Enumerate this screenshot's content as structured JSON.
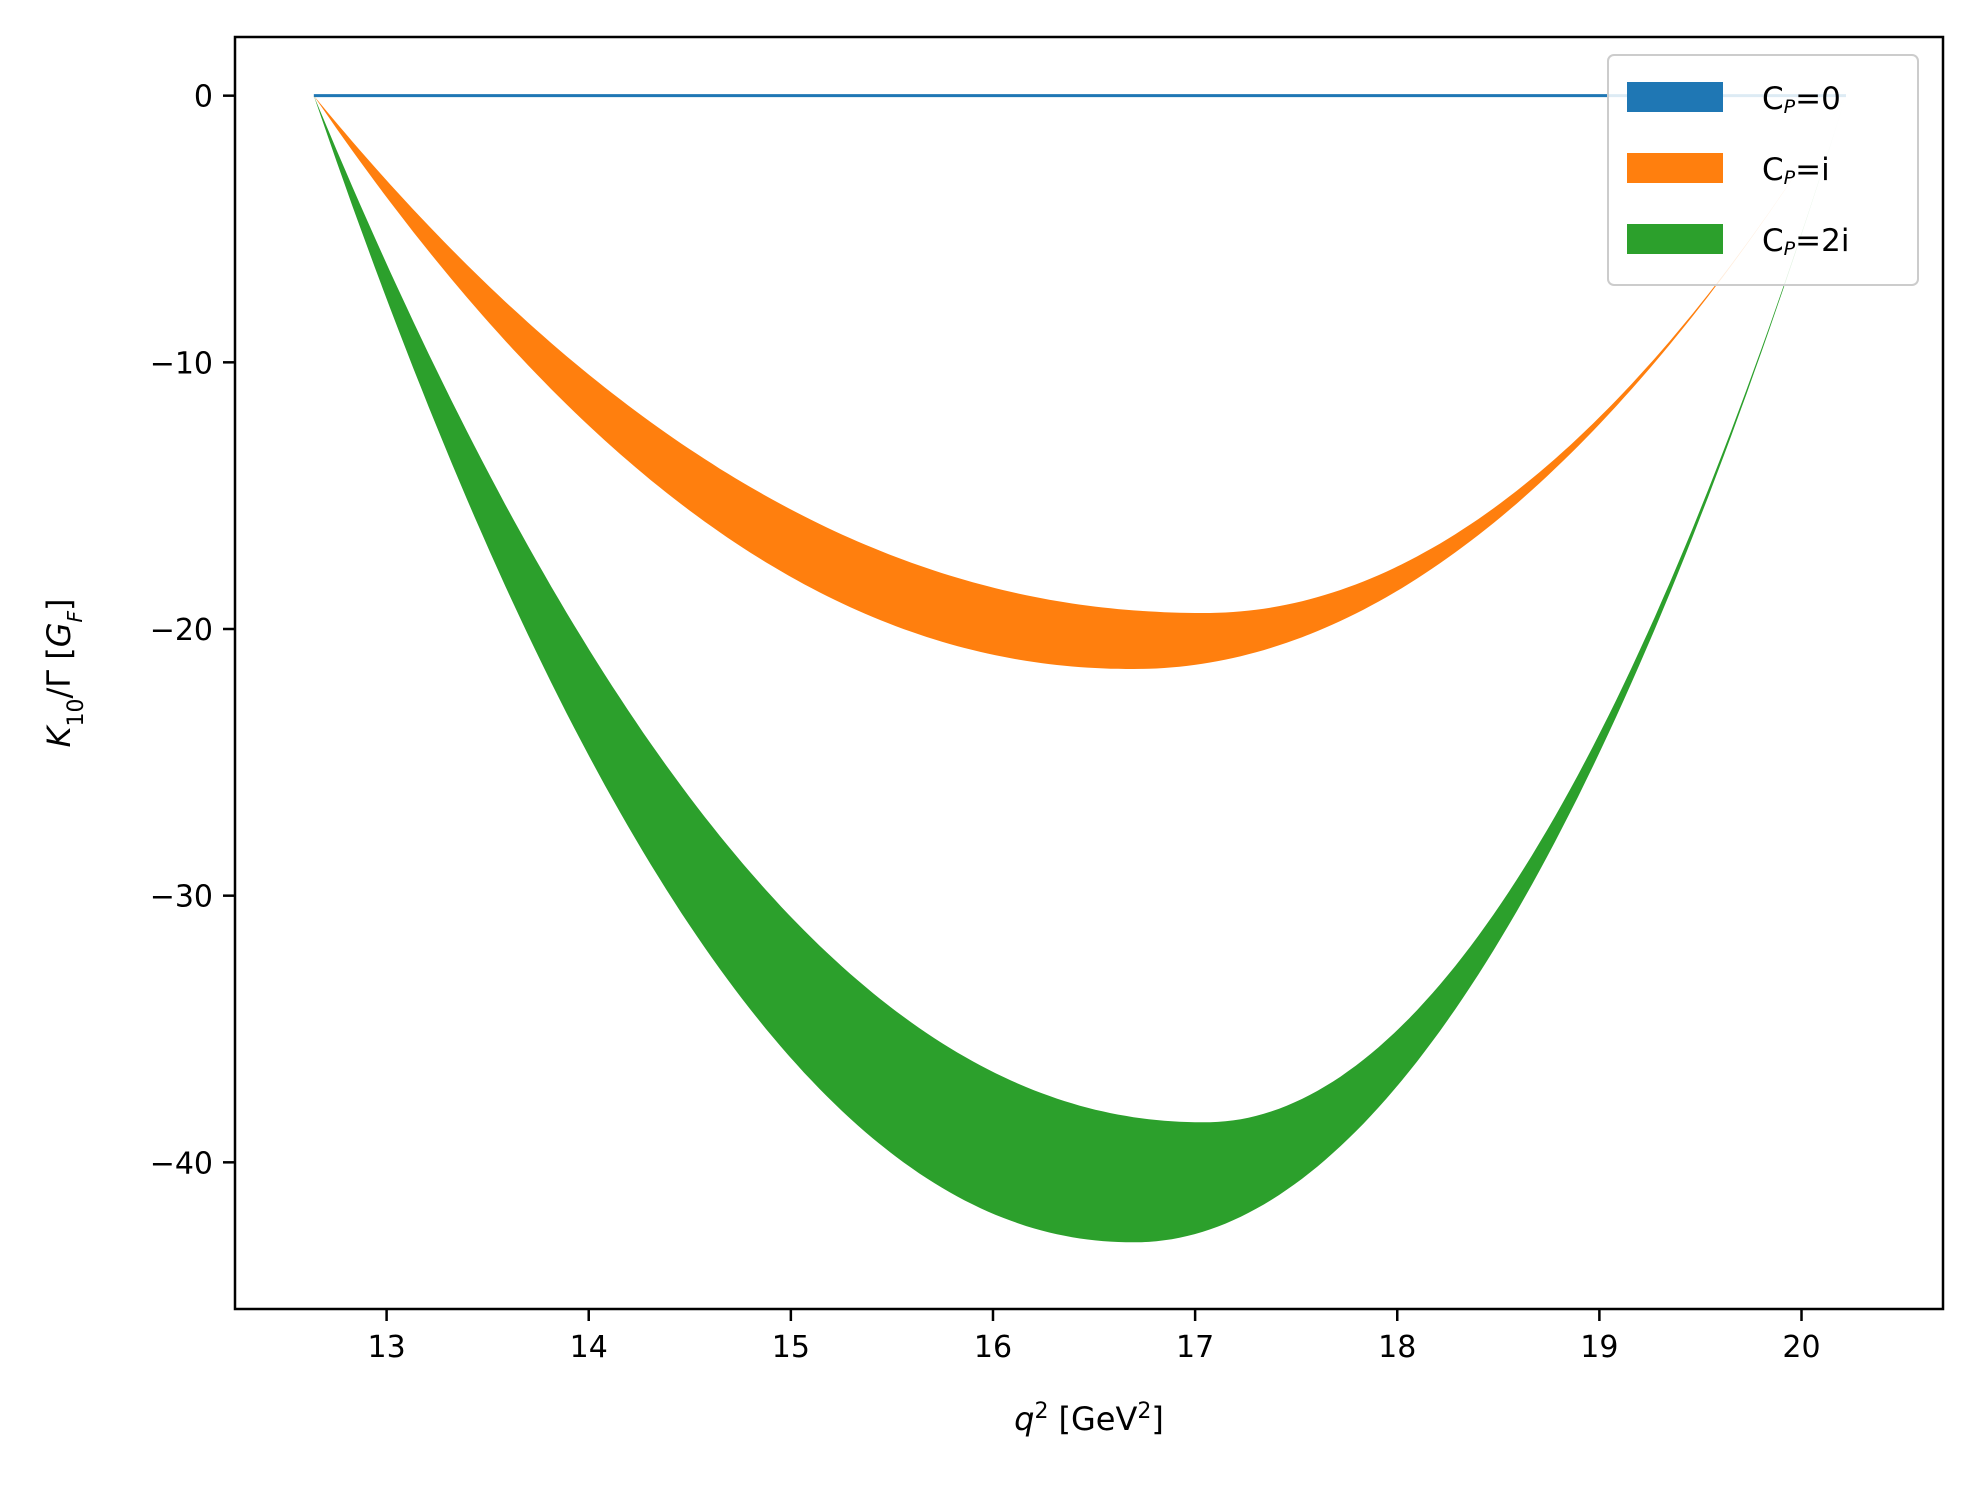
{
  "chart_data": {
    "type": "area",
    "xlabel": {
      "var": "q",
      "sup": "2",
      "unit": "[GeV",
      "unit_sup": "2",
      "unit_close": "]"
    },
    "ylabel": {
      "main": "K",
      "sub": "10",
      "mid": "/Γ [",
      "g": "G",
      "g_sub": "F",
      "close": "]"
    },
    "xlim": [
      12.25,
      20.7
    ],
    "ylim": [
      -45.5,
      2.2
    ],
    "x_ticks": [
      13,
      14,
      15,
      16,
      17,
      18,
      19,
      20
    ],
    "y_ticks": [
      0,
      -10,
      -20,
      -30,
      -40
    ],
    "x_tick_labels": [
      "13",
      "14",
      "15",
      "16",
      "17",
      "18",
      "19",
      "20"
    ],
    "y_tick_labels": [
      "0",
      "−10",
      "−20",
      "−30",
      "−40"
    ],
    "grid": false,
    "legend_position": "top-right",
    "x_range": [
      12.64,
      20.22
    ],
    "series": [
      {
        "name_main": "C",
        "name_sub": "P",
        "name_rest": "=0",
        "color": "#1f77b4",
        "min_at": 16.7,
        "upper_min": 0,
        "lower_min": 0
      },
      {
        "name_main": "C",
        "name_sub": "P",
        "name_rest": "=i",
        "color": "#ff7f0e",
        "min_at": 16.8,
        "upper_min": -19.4,
        "lower_min": -21.5
      },
      {
        "name_main": "C",
        "name_sub": "P",
        "name_rest": "=2i",
        "color": "#2ca02c",
        "min_at": 16.8,
        "upper_min": -38.5,
        "lower_min": -43.0
      }
    ]
  }
}
